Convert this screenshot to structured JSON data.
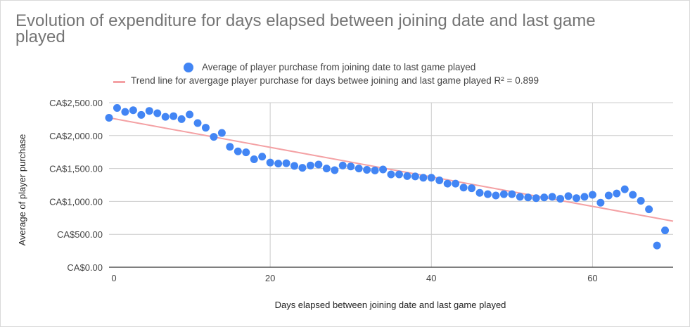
{
  "chart_data": {
    "type": "scatter",
    "title": "Evolution of expenditure for days elapsed between joining date and last game played",
    "xlabel": "Days elapsed between joining date and last game played",
    "ylabel": "Average of player purchase",
    "xlim": [
      0,
      70
    ],
    "ylim": [
      0,
      2500
    ],
    "x_ticks": [
      0,
      20,
      40,
      60
    ],
    "x_tick_labels": [
      "0",
      "20",
      "40",
      "60"
    ],
    "y_ticks": [
      0,
      500,
      1000,
      1500,
      2000,
      2500
    ],
    "y_tick_labels": [
      "CA$0.00",
      "CA$500.00",
      "CA$1,000.00",
      "CA$1,500.00",
      "CA$2,000.00",
      "CA$2,500.00"
    ],
    "grid": true,
    "legend_position": "top",
    "series": [
      {
        "name": "Average of player purchase from joining date to last game played",
        "kind": "scatter",
        "color": "#4285f4",
        "x": [
          0,
          1,
          2,
          3,
          4,
          5,
          6,
          7,
          8,
          9,
          10,
          11,
          12,
          13,
          14,
          15,
          16,
          17,
          18,
          19,
          20,
          21,
          22,
          23,
          24,
          25,
          26,
          27,
          28,
          29,
          30,
          31,
          32,
          33,
          34,
          35,
          36,
          37,
          38,
          39,
          40,
          41,
          42,
          43,
          44,
          45,
          46,
          47,
          48,
          49,
          50,
          51,
          52,
          53,
          54,
          55,
          56,
          57,
          58,
          59,
          60,
          61,
          62,
          63,
          64,
          65,
          66,
          67,
          68,
          69
        ],
        "y": [
          2270,
          2420,
          2360,
          2385,
          2315,
          2375,
          2340,
          2285,
          2295,
          2250,
          2320,
          2190,
          2120,
          1980,
          2040,
          1830,
          1760,
          1745,
          1640,
          1680,
          1590,
          1575,
          1580,
          1540,
          1510,
          1545,
          1560,
          1500,
          1475,
          1545,
          1530,
          1500,
          1480,
          1470,
          1485,
          1410,
          1410,
          1385,
          1380,
          1360,
          1360,
          1320,
          1270,
          1270,
          1210,
          1200,
          1130,
          1110,
          1090,
          1110,
          1110,
          1070,
          1060,
          1050,
          1060,
          1070,
          1040,
          1080,
          1050,
          1070,
          1100,
          980,
          1090,
          1120,
          1185,
          1100,
          1010,
          880,
          330,
          560
        ]
      },
      {
        "name": "Trend line for avergage player purchase for days betwee joining and last game played R² = 0.899",
        "kind": "trendline",
        "color": "#f4a1a4",
        "x": [
          0,
          70
        ],
        "y": [
          2270,
          700
        ]
      }
    ]
  }
}
